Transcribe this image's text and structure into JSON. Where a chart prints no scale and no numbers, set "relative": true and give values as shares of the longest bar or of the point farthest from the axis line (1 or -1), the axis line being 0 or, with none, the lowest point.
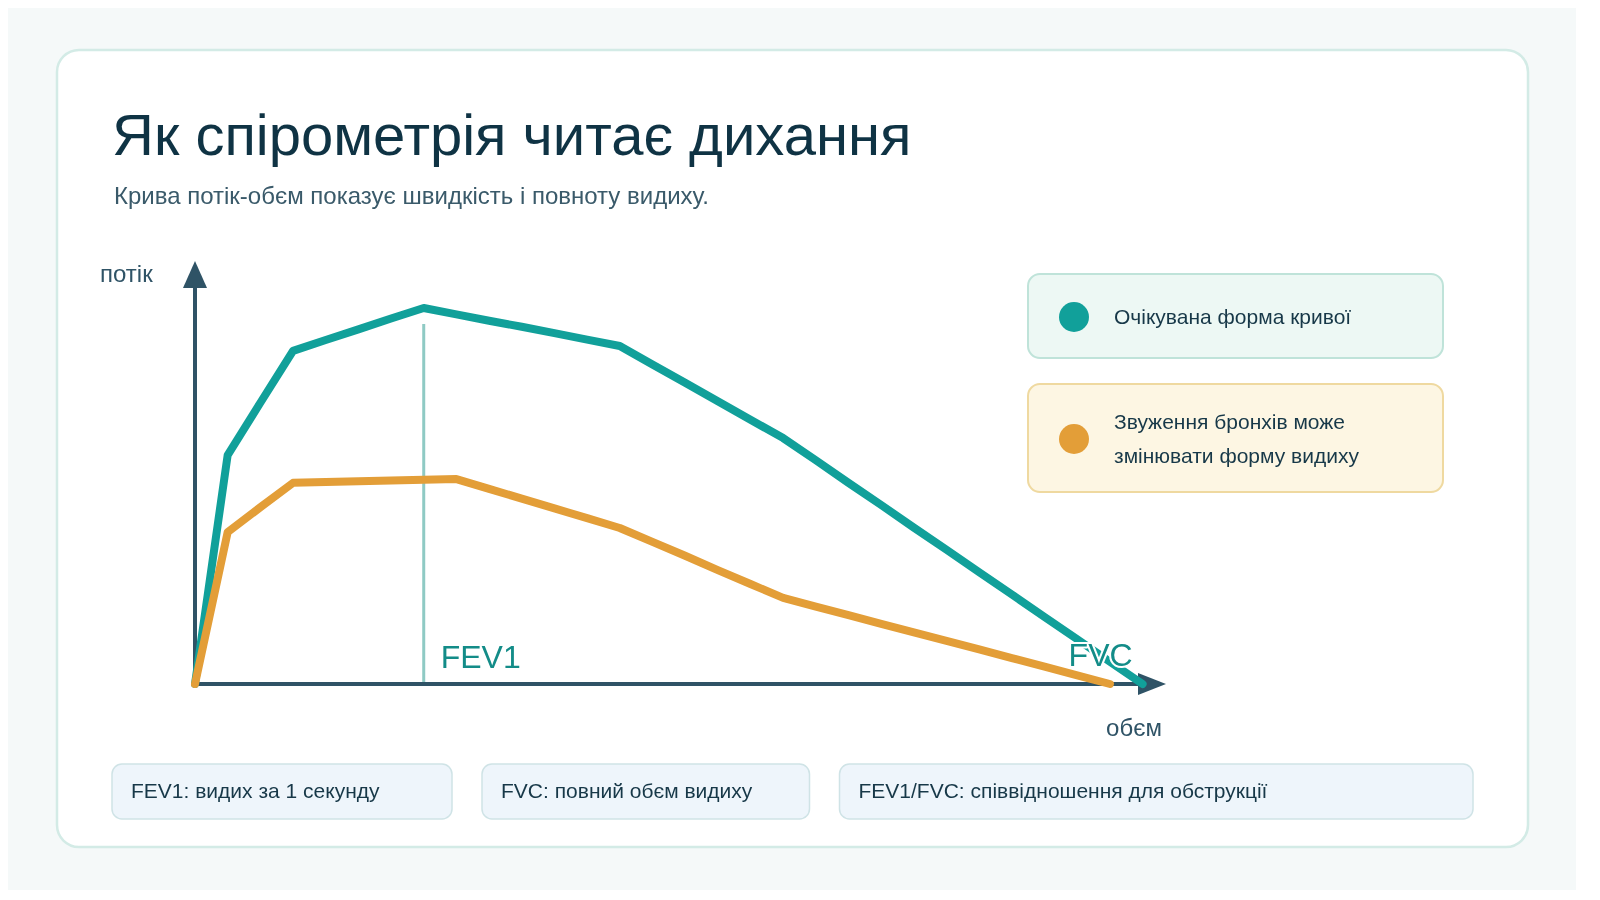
{
  "chart_data": {
    "type": "line",
    "title": "Як спірометрія читає дихання",
    "subtitle": "Крива потік-обєм показує швидкість і повноту видиху.",
    "xlabel": "обєм",
    "ylabel": "потік",
    "relative": true,
    "legend": "right",
    "marker": "none",
    "line_style": "solid",
    "categories": [
      null,
      null,
      null,
      null,
      null,
      null,
      null,
      null,
      null,
      null,
      null,
      null,
      null,
      null,
      null,
      null,
      null,
      null,
      null,
      null,
      null,
      null,
      null,
      null,
      null,
      null,
      null,
      null,
      null,
      null
    ],
    "series": [
      {
        "name": "Очікувана форма кривої",
        "color": "#11a09a",
        "values": [
          0,
          0.609,
          0.748,
          0.886,
          0.915,
          0.943,
          0.972,
          1,
          0.983,
          0.966,
          0.95,
          0.933,
          0.916,
          0.899,
          0.85,
          0.801,
          0.752,
          0.703,
          0.654,
          0.595,
          0.535,
          0.476,
          0.416,
          0.357,
          0.297,
          0.238,
          0.178,
          0.119,
          0.059,
          0
        ]
      },
      {
        "name": "Звуження бронхів може змінювати форму видиху",
        "color": "#e39e38",
        "values": [
          0,
          0.404,
          0.47,
          0.535,
          0.537,
          0.539,
          0.541,
          0.543,
          0.545,
          0.519,
          0.493,
          0.467,
          0.441,
          0.415,
          0.378,
          0.341,
          0.303,
          0.266,
          0.229,
          0.206,
          0.183,
          0.16,
          0.137,
          0.115,
          0.092,
          0.069,
          0.046,
          0.023,
          0,
          null
        ]
      }
    ],
    "annotations": [
      {
        "text": "FEV1"
      },
      {
        "text": "FVC"
      },
      "FEV1: видих за 1 секунду",
      "FVC: повний обєм видиху",
      "FEV1/FVC: співвідношення для обструкції"
    ]
  }
}
